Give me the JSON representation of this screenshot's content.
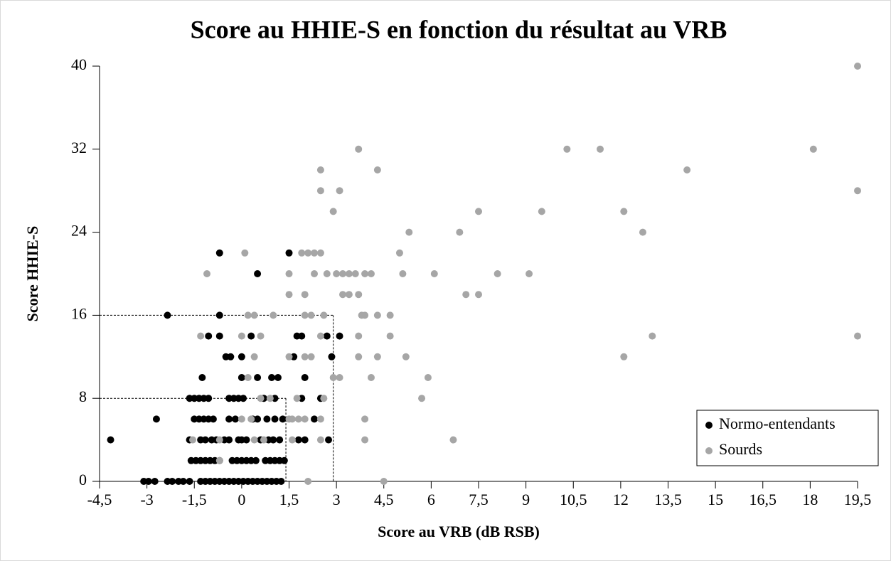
{
  "chart_data": {
    "type": "scatter",
    "title": "Score au HHIE-S en fonction du résultat au VRB",
    "x_label": "Score au VRB (dB RSB)",
    "y_label": "Score  HHIE-S",
    "xlim": [
      -4.5,
      19.5
    ],
    "xticks": [
      {
        "value": -4.5,
        "label": "-4,5"
      },
      -3,
      {
        "value": -1.5,
        "label": "-1,5"
      },
      0,
      {
        "value": 1.5,
        "label": "1,5"
      },
      3,
      {
        "value": 4.5,
        "label": "4,5"
      },
      6,
      {
        "value": 7.5,
        "label": "7,5"
      },
      9,
      {
        "value": 10.5,
        "label": "10,5"
      },
      12,
      {
        "value": 13.5,
        "label": "13,5"
      },
      15,
      {
        "value": 16.5,
        "label": "16,5"
      },
      18,
      {
        "value": 19.5,
        "label": "19,5"
      }
    ],
    "ylim": [
      0,
      40
    ],
    "yticks": [
      0,
      8,
      16,
      24,
      32,
      40
    ],
    "legend": "bottom-right",
    "reference_lines": [
      {
        "x": 2.9,
        "y": 16
      },
      {
        "x": 1.4,
        "y": 8
      }
    ],
    "series": [
      {
        "name": "Normo-entendants",
        "color": "#000000",
        "x": [
          -3.1,
          -2.95,
          -2.75,
          -2.35,
          -2.2,
          -2.0,
          -1.85,
          -1.65,
          -1.3,
          -1.15,
          -1.0,
          -0.85,
          -0.7,
          -0.55,
          -0.4,
          -0.25,
          -0.1,
          0.05,
          0.2,
          0.35,
          0.5,
          0.65,
          0.8,
          0.95,
          1.1,
          1.25,
          -1.6,
          -1.45,
          -1.3,
          -1.15,
          -1.0,
          -0.85,
          -0.7,
          -0.3,
          -0.15,
          0.0,
          0.15,
          0.3,
          0.45,
          0.75,
          0.9,
          1.05,
          1.2,
          1.35,
          -4.15,
          -1.65,
          -1.3,
          -1.15,
          -0.95,
          -0.8,
          -0.55,
          -0.4,
          -0.1,
          0.0,
          0.15,
          0.6,
          0.85,
          1.0,
          1.2,
          1.8,
          2.0,
          2.75,
          -2.7,
          -1.5,
          -1.35,
          -1.2,
          -1.05,
          -0.9,
          -0.4,
          -0.2,
          0.35,
          0.5,
          0.8,
          1.05,
          1.3,
          2.3,
          -1.65,
          -1.5,
          -1.35,
          -1.2,
          -1.05,
          -0.4,
          -0.25,
          -0.1,
          0.05,
          0.7,
          1.05,
          1.9,
          2.5,
          -1.25,
          0.0,
          0.5,
          0.95,
          1.15,
          2.0,
          -0.5,
          -0.35,
          0.0,
          1.65,
          2.85,
          -1.05,
          -0.7,
          0.3,
          1.75,
          1.9,
          2.7,
          3.1,
          -2.35,
          -0.7,
          0.5,
          -0.7,
          1.5
        ],
        "values": [
          0,
          0,
          0,
          0,
          0,
          0,
          0,
          0,
          0,
          0,
          0,
          0,
          0,
          0,
          0,
          0,
          0,
          0,
          0,
          0,
          0,
          0,
          0,
          0,
          0,
          0,
          2,
          2,
          2,
          2,
          2,
          2,
          2,
          2,
          2,
          2,
          2,
          2,
          2,
          2,
          2,
          2,
          2,
          2,
          4,
          4,
          4,
          4,
          4,
          4,
          4,
          4,
          4,
          4,
          4,
          4,
          4,
          4,
          4,
          4,
          4,
          4,
          6,
          6,
          6,
          6,
          6,
          6,
          6,
          6,
          6,
          6,
          6,
          6,
          6,
          6,
          8,
          8,
          8,
          8,
          8,
          8,
          8,
          8,
          8,
          8,
          8,
          8,
          8,
          10,
          10,
          10,
          10,
          10,
          10,
          12,
          12,
          12,
          12,
          12,
          14,
          14,
          14,
          14,
          14,
          14,
          14,
          16,
          16,
          20,
          22,
          22
        ]
      },
      {
        "name": "Sourds",
        "color": "#a6a6a6",
        "x": [
          19.5,
          3.7,
          10.3,
          11.35,
          18.1,
          2.5,
          4.3,
          14.1,
          2.5,
          3.1,
          19.5,
          2.9,
          7.5,
          9.5,
          12.1,
          5.3,
          6.9,
          12.7,
          0.1,
          1.9,
          2.1,
          2.3,
          2.5,
          5.0,
          -1.1,
          1.5,
          2.3,
          2.7,
          3.0,
          3.2,
          3.4,
          3.6,
          3.9,
          4.1,
          5.1,
          6.1,
          8.1,
          9.1,
          1.5,
          2.0,
          3.2,
          3.4,
          3.7,
          7.1,
          7.5,
          0.2,
          0.4,
          1.0,
          2.0,
          2.2,
          2.6,
          3.8,
          3.9,
          4.3,
          4.7,
          -1.3,
          0.0,
          0.6,
          2.5,
          3.7,
          4.7,
          13.0,
          19.5,
          0.4,
          1.5,
          2.0,
          2.2,
          3.7,
          4.3,
          5.2,
          12.1,
          0.2,
          2.9,
          3.1,
          4.1,
          5.9,
          0.6,
          0.9,
          1.75,
          2.6,
          5.7,
          0.0,
          0.3,
          1.5,
          1.6,
          1.8,
          2.0,
          2.5,
          3.9,
          -1.55,
          -0.7,
          0.4,
          0.7,
          1.6,
          2.5,
          3.9,
          6.7,
          -0.7,
          2.1,
          4.5
        ],
        "values": [
          40,
          32,
          32,
          32,
          32,
          30,
          30,
          30,
          28,
          28,
          28,
          26,
          26,
          26,
          26,
          24,
          24,
          24,
          22,
          22,
          22,
          22,
          22,
          22,
          20,
          20,
          20,
          20,
          20,
          20,
          20,
          20,
          20,
          20,
          20,
          20,
          20,
          20,
          18,
          18,
          18,
          18,
          18,
          18,
          18,
          16,
          16,
          16,
          16,
          16,
          16,
          16,
          16,
          16,
          16,
          14,
          14,
          14,
          14,
          14,
          14,
          14,
          14,
          12,
          12,
          12,
          12,
          12,
          12,
          12,
          12,
          10,
          10,
          10,
          10,
          10,
          8,
          8,
          8,
          8,
          8,
          6,
          6,
          6,
          6,
          6,
          6,
          6,
          6,
          4,
          4,
          4,
          4,
          4,
          4,
          4,
          4,
          2,
          0,
          0
        ]
      }
    ]
  }
}
